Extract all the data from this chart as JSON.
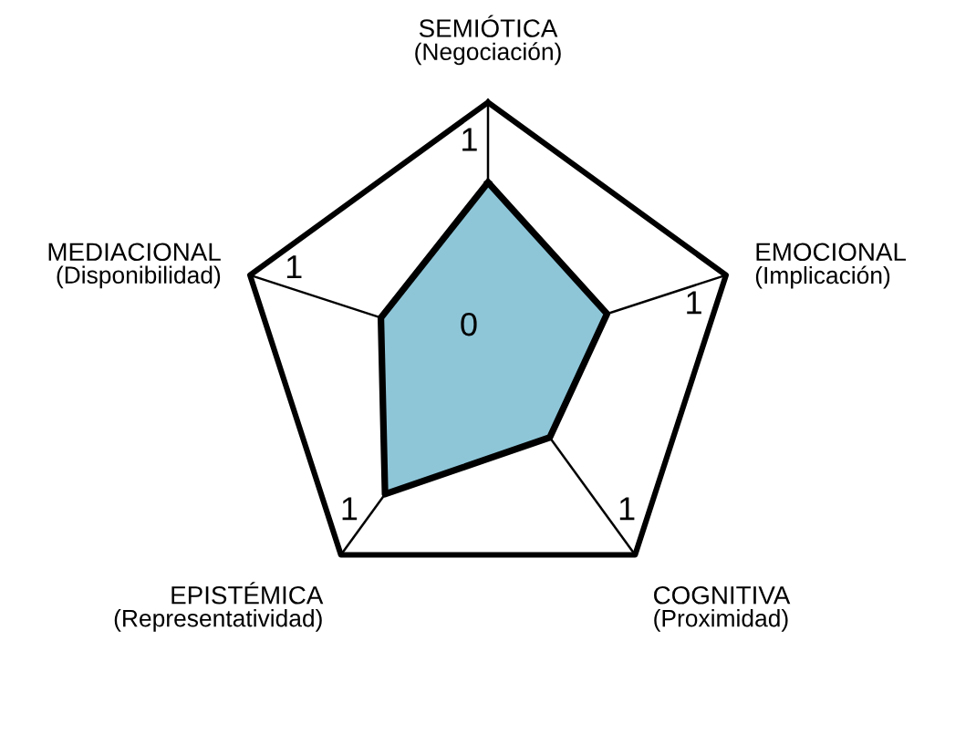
{
  "chart_data": {
    "type": "radar",
    "categories": [
      "SEMIÓTICA\n(Negociación)",
      "EMOCIONAL\n(Implicación)",
      "COGNITIVA\n(Proximidad)",
      "EPISTÉMICA\n(Representatividad)",
      "MEDIACIONAL\n(Disponibilidad)"
    ],
    "series": [
      {
        "color": "#8ec6d8",
        "values": [
          0.68,
          0.5,
          0.42,
          0.7,
          0.45
        ]
      }
    ],
    "annotations": [
      "1",
      "1",
      "1",
      "1"
    ],
    "ylim": [
      0,
      1
    ],
    "yticks": [
      0,
      1
    ],
    "grid": true,
    "legend": false,
    "marker": "none",
    "line_style": "solid"
  }
}
